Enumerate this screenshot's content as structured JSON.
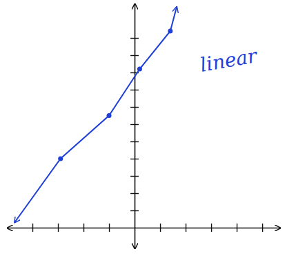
{
  "chart_data": {
    "type": "line",
    "annotation": "linear",
    "xlim": [
      -5,
      5.7
    ],
    "ylim": [
      -1.2,
      13
    ],
    "xticks": [
      -4,
      -3,
      -2,
      -1,
      1,
      2,
      3,
      4,
      5
    ],
    "yticks": [
      1,
      2,
      3,
      4,
      5,
      6,
      7,
      8,
      9,
      10,
      11
    ],
    "tick_labels": false,
    "grid": false,
    "color": "#1f3fd6",
    "series": [
      {
        "type": "line",
        "marker": "none",
        "line_style": "solid",
        "color": "#1f3fd6",
        "x": [
          -4.7,
          -2.9,
          -1,
          0.2,
          1.4,
          1.65
        ],
        "values": [
          0.3,
          4,
          6.5,
          9.2,
          11.4,
          12.8
        ]
      },
      {
        "type": "scatter",
        "marker": "circle",
        "color": "#1f3fd6",
        "x": [
          -2.9,
          -1,
          0.2,
          1.4
        ],
        "values": [
          4,
          6.5,
          9.2,
          11.4
        ]
      }
    ]
  }
}
